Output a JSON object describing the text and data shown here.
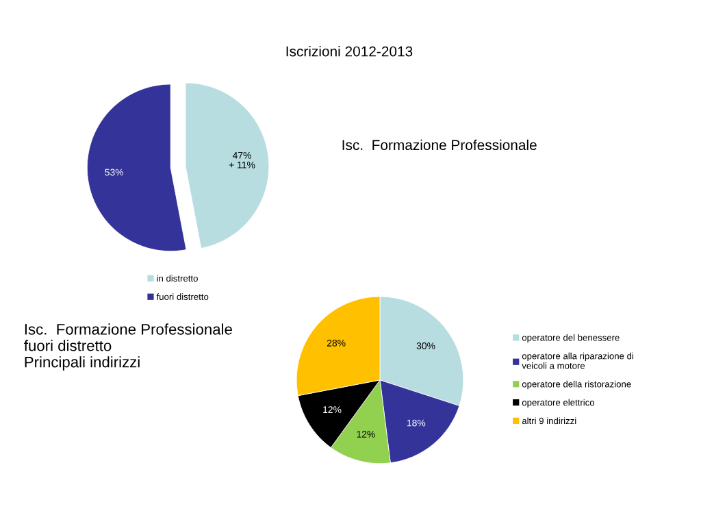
{
  "chart_data": [
    {
      "type": "pie",
      "title": "Iscrizioni 2012-2013",
      "subtitle": "Isc.  Formazione Professionale",
      "categories": [
        "in distretto",
        "fuori distretto"
      ],
      "values": [
        47,
        53
      ],
      "colors": [
        "#b7dde0",
        "#333399"
      ],
      "value_labels": [
        "47%\n+ 11%",
        "53%"
      ],
      "legend": "bottom"
    },
    {
      "type": "pie",
      "title": "Isc.  Formazione Professionale\nfuori distretto\nPrincipali indirizzi",
      "categories": [
        "operatore del benessere",
        "operatore alla riparazione di\nveicoli a motore",
        "operatore della ristorazione",
        "operatore elettrico",
        "altri 9 indirizzi"
      ],
      "values": [
        30,
        18,
        12,
        12,
        28
      ],
      "colors": [
        "#b7dde0",
        "#333399",
        "#92d050",
        "#000000",
        "#ffc000"
      ],
      "value_labels": [
        "30%",
        "18%",
        "12%",
        "12%",
        "28%"
      ],
      "legend": "right"
    }
  ]
}
